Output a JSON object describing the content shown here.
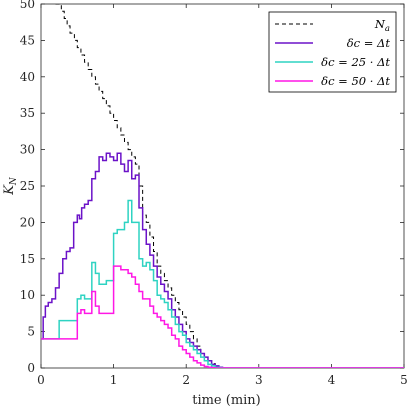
{
  "chart_data": {
    "type": "line",
    "title": "",
    "xlabel": "time (min)",
    "ylabel": "K_N",
    "xlim": [
      0,
      5
    ],
    "ylim": [
      0,
      50
    ],
    "xticks": [
      0,
      1,
      2,
      3,
      4,
      5
    ],
    "yticks": [
      0,
      5,
      10,
      15,
      20,
      25,
      30,
      35,
      40,
      45,
      50
    ],
    "grid": false,
    "legend_position": "top-right",
    "series": [
      {
        "name": "N_a",
        "legend": "N",
        "legend_sub": "a",
        "color": "#000000",
        "dash": "dashed",
        "x": [
          0.2,
          0.28,
          0.32,
          0.36,
          0.4,
          0.46,
          0.5,
          0.55,
          0.6,
          0.65,
          0.7,
          0.75,
          0.8,
          0.85,
          0.9,
          0.95,
          1.0,
          1.05,
          1.1,
          1.15,
          1.2,
          1.25,
          1.3,
          1.35,
          1.4,
          1.45,
          1.5,
          1.55,
          1.6,
          1.65,
          1.7,
          1.75,
          1.8,
          1.85,
          1.9,
          1.95,
          2.0,
          2.05,
          2.1,
          2.15,
          2.2,
          2.25,
          2.3,
          2.35,
          2.4,
          2.45,
          2.5,
          5.0
        ],
        "y": [
          50,
          49,
          48,
          47,
          46,
          45,
          44,
          43,
          42,
          41,
          40,
          39,
          38,
          37,
          36,
          35,
          34,
          33,
          32,
          31,
          30,
          29,
          28,
          25,
          21,
          20,
          18,
          16,
          14,
          13,
          12,
          11,
          10,
          9,
          8,
          7,
          6,
          5,
          4,
          3,
          2,
          1.5,
          1,
          0.6,
          0.3,
          0.1,
          0,
          0
        ]
      },
      {
        "name": "dc = Δt",
        "legend": "δc = Δt",
        "color": "#6b12c8",
        "dash": "solid",
        "x": [
          0.0,
          0.03,
          0.06,
          0.1,
          0.15,
          0.2,
          0.25,
          0.3,
          0.35,
          0.4,
          0.45,
          0.5,
          0.53,
          0.56,
          0.6,
          0.65,
          0.7,
          0.75,
          0.8,
          0.85,
          0.9,
          0.95,
          1.0,
          1.05,
          1.1,
          1.15,
          1.2,
          1.25,
          1.3,
          1.35,
          1.4,
          1.45,
          1.5,
          1.55,
          1.6,
          1.65,
          1.7,
          1.75,
          1.8,
          1.85,
          1.9,
          1.95,
          2.0,
          2.05,
          2.1,
          2.15,
          2.2,
          2.25,
          2.3,
          2.35,
          2.4,
          2.45,
          2.5,
          5.0
        ],
        "y": [
          4,
          7,
          8.5,
          9,
          9.5,
          11,
          13,
          15,
          16,
          16.5,
          20,
          21,
          20.5,
          22,
          22.5,
          23,
          26,
          27,
          29,
          28.5,
          29.5,
          29,
          28.5,
          29.5,
          28,
          27,
          28.5,
          26,
          26.5,
          22,
          19,
          17,
          15.5,
          14,
          12.5,
          11.5,
          10.5,
          9.5,
          8,
          7,
          6,
          5,
          4,
          3.5,
          3,
          2.5,
          2,
          1.5,
          1,
          0.5,
          0.3,
          0.1,
          0,
          0
        ]
      },
      {
        "name": "dc = 25 · Δt",
        "legend": "δc = 25 · Δt",
        "color": "#2ed3c2",
        "dash": "solid",
        "x": [
          0.0,
          0.1,
          0.2,
          0.25,
          0.35,
          0.45,
          0.5,
          0.55,
          0.6,
          0.7,
          0.75,
          0.8,
          0.85,
          0.9,
          1.0,
          1.05,
          1.1,
          1.15,
          1.2,
          1.25,
          1.3,
          1.35,
          1.4,
          1.45,
          1.5,
          1.55,
          1.6,
          1.65,
          1.7,
          1.75,
          1.8,
          1.85,
          1.9,
          1.95,
          2.0,
          2.05,
          2.1,
          2.15,
          2.2,
          2.25,
          2.3,
          2.35,
          2.4,
          2.45,
          2.5,
          5.0
        ],
        "y": [
          4,
          4,
          4,
          6.5,
          6.5,
          6.5,
          9.5,
          10,
          9.5,
          14.5,
          13,
          11.5,
          11.5,
          12,
          18.5,
          19,
          19,
          20,
          23,
          20,
          20,
          15,
          14,
          14.5,
          13.5,
          12,
          10,
          9.5,
          9,
          8,
          7,
          6,
          5,
          4.5,
          3.5,
          3,
          2.5,
          2,
          1.5,
          1,
          0.5,
          0.3,
          0.1,
          0.05,
          0,
          0
        ]
      },
      {
        "name": "dc = 50 · Δt",
        "legend": "δc = 50 · Δt",
        "color": "#ff17e5",
        "dash": "solid",
        "x": [
          0.0,
          0.1,
          0.2,
          0.3,
          0.4,
          0.45,
          0.5,
          0.55,
          0.6,
          0.7,
          0.75,
          0.8,
          0.85,
          0.9,
          1.0,
          1.05,
          1.1,
          1.15,
          1.2,
          1.25,
          1.3,
          1.35,
          1.4,
          1.45,
          1.5,
          1.55,
          1.6,
          1.65,
          1.7,
          1.75,
          1.8,
          1.85,
          1.9,
          1.95,
          2.0,
          2.05,
          2.1,
          2.15,
          2.2,
          2.25,
          2.3,
          2.35,
          2.4,
          2.45,
          2.5,
          5.0
        ],
        "y": [
          4,
          4,
          4,
          4,
          4,
          4,
          7.5,
          8,
          7.5,
          10.5,
          8.5,
          7.5,
          7.5,
          7.5,
          14,
          14,
          13.5,
          13.5,
          13,
          12.5,
          11.5,
          10.5,
          9.5,
          9.5,
          8.5,
          7.5,
          7,
          6.5,
          6,
          5.5,
          4.5,
          4,
          3,
          2.5,
          2,
          1.5,
          1,
          0.7,
          0.4,
          0.2,
          0.1,
          0.05,
          0,
          0,
          0,
          0
        ]
      }
    ]
  }
}
